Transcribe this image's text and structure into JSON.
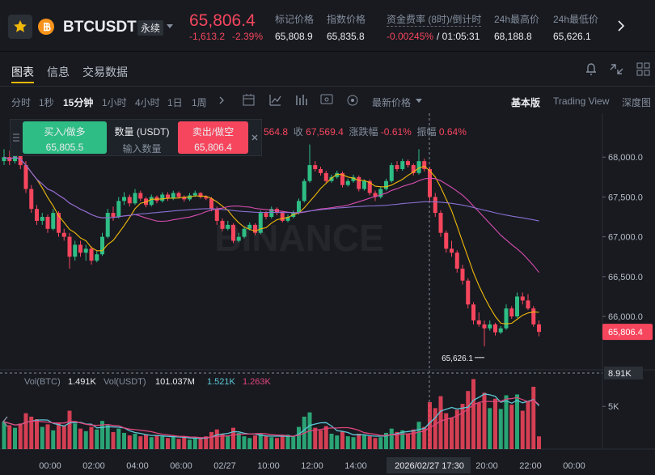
{
  "header": {
    "symbol": "BTCUSDT",
    "contract": "永续",
    "price": "65,806.4",
    "change": "-1,613.2",
    "change_pct": "-2.39%",
    "stats": [
      {
        "label": "标记价格",
        "value": "65,808.9"
      },
      {
        "label": "指数价格",
        "value": "65,835.8"
      }
    ],
    "funding": {
      "label": "资金费率 (8时)/倒计时",
      "value": "-0.00245%",
      "countdown": "/ 01:05:31"
    },
    "high": {
      "label": "24h最高价",
      "value": "68,188.8"
    },
    "low": {
      "label": "24h最低价",
      "value": "65,626.1"
    }
  },
  "tabs": [
    "图表",
    "信息",
    "交易数据"
  ],
  "intervals": [
    "分时",
    "1秒",
    "15分钟",
    "1小时",
    "4小时",
    "1日",
    "1周"
  ],
  "price_type": "最新价格",
  "views": [
    "基本版",
    "Trading View",
    "深度图"
  ],
  "order_panel": {
    "buy": "买入/做多",
    "buy_price": "65,805.5",
    "qty": "数量 (USDT)",
    "qty_hint": "输入数量",
    "sell": "卖出/做空",
    "sell_price": "65,806.4"
  },
  "ohlc_line": [
    "564.8",
    "收",
    "67,569.4",
    "涨跌幅",
    "-0.61%",
    "振幅",
    "0.64%"
  ],
  "chart": {
    "up_color": "#2ebd85",
    "down_color": "#f6465d",
    "price_ylim": [
      65350,
      68500
    ],
    "price_ticks": [
      {
        "value": 68000,
        "label": "68,000.0"
      },
      {
        "value": 67500,
        "label": "67,500.0"
      },
      {
        "value": 67000,
        "label": "67,000.0"
      },
      {
        "value": 66500,
        "label": "66,500.0"
      },
      {
        "value": 66000,
        "label": "66,000.0"
      }
    ],
    "last_price": {
      "value": 65806.4,
      "label": "65,806.4"
    },
    "low_label": "65,626.1",
    "watermark": "BINANCE",
    "ma": [
      {
        "period": 7,
        "color": "#f0b90b"
      },
      {
        "period": 25,
        "color": "#d84cb0"
      },
      {
        "period": 99,
        "color": "#8a6fd0"
      }
    ],
    "vol_ma": [
      {
        "period": 5,
        "color": "#5cc8d8"
      },
      {
        "period": 10,
        "color": "#e0457b"
      }
    ],
    "vol_ylim": [
      0,
      9000
    ],
    "vol_ticks": [
      {
        "value": 5000,
        "label": "5K"
      }
    ],
    "vol_legend": [
      "Vol(BTC)",
      "1.491K",
      "Vol(USDT)",
      "101.037M",
      "1.521K",
      "1.263K"
    ],
    "crosshair_time": "2026/02/27 17:30",
    "crosshair_vol": {
      "value": 8910,
      "label": "8.91K"
    },
    "time_labels": [
      "00:00",
      "02:00",
      "04:00",
      "06:00",
      "02/27",
      "10:00",
      "12:00",
      "14:00",
      "20:00",
      "22:00",
      "00:00"
    ],
    "candles": [
      [
        67950,
        68100,
        67900,
        68000
      ],
      [
        68000,
        68080,
        67900,
        67950
      ],
      [
        67950,
        68120,
        67920,
        68050
      ],
      [
        68050,
        68080,
        67850,
        67900
      ],
      [
        67900,
        67950,
        67550,
        67600
      ],
      [
        67600,
        67650,
        67300,
        67350
      ],
      [
        67350,
        67400,
        67150,
        67200
      ],
      [
        67200,
        67300,
        67150,
        67250
      ],
      [
        67250,
        67280,
        67050,
        67100
      ],
      [
        67100,
        67350,
        67080,
        67300
      ],
      [
        67300,
        67320,
        67000,
        67050
      ],
      [
        67050,
        67100,
        66950,
        67000
      ],
      [
        67000,
        67050,
        66600,
        66750
      ],
      [
        66750,
        66950,
        66700,
        66900
      ],
      [
        66900,
        66950,
        66750,
        66800
      ],
      [
        66800,
        66900,
        66700,
        66850
      ],
      [
        66850,
        66880,
        66650,
        66700
      ],
      [
        66700,
        66820,
        66680,
        66780
      ],
      [
        66780,
        67050,
        66760,
        67000
      ],
      [
        67000,
        67350,
        66980,
        67300
      ],
      [
        67300,
        67380,
        67200,
        67250
      ],
      [
        67250,
        67500,
        67230,
        67450
      ],
      [
        67450,
        67560,
        67400,
        67500
      ],
      [
        67500,
        67530,
        67380,
        67420
      ],
      [
        67420,
        67600,
        67400,
        67550
      ],
      [
        67550,
        67580,
        67450,
        67480
      ],
      [
        67480,
        67500,
        67370,
        67400
      ],
      [
        67400,
        67530,
        67380,
        67500
      ],
      [
        67500,
        67520,
        67420,
        67450
      ],
      [
        67450,
        67560,
        67430,
        67530
      ],
      [
        67530,
        67560,
        67450,
        67480
      ],
      [
        67480,
        67580,
        67460,
        67550
      ],
      [
        67550,
        67570,
        67480,
        67500
      ],
      [
        67500,
        67520,
        67440,
        67470
      ],
      [
        67470,
        67550,
        67450,
        67520
      ],
      [
        67520,
        67580,
        67500,
        67550
      ],
      [
        67550,
        67560,
        67480,
        67500
      ],
      [
        67500,
        67520,
        67460,
        67480
      ],
      [
        67480,
        67500,
        67320,
        67350
      ],
      [
        67350,
        67380,
        67150,
        67200
      ],
      [
        67200,
        67230,
        67070,
        67100
      ],
      [
        67100,
        67200,
        67080,
        67150
      ],
      [
        67150,
        67170,
        66920,
        66950
      ],
      [
        66950,
        67050,
        66930,
        67000
      ],
      [
        67000,
        67130,
        66980,
        67100
      ],
      [
        67100,
        67180,
        67080,
        67150
      ],
      [
        67150,
        67170,
        67020,
        67050
      ],
      [
        67050,
        67330,
        67030,
        67300
      ],
      [
        67300,
        67320,
        67220,
        67250
      ],
      [
        67250,
        67380,
        67230,
        67350
      ],
      [
        67350,
        67370,
        67270,
        67300
      ],
      [
        67300,
        67320,
        67180,
        67200
      ],
      [
        67200,
        67280,
        67180,
        67250
      ],
      [
        67250,
        67330,
        67230,
        67300
      ],
      [
        67300,
        67480,
        67280,
        67450
      ],
      [
        67450,
        67730,
        67430,
        67700
      ],
      [
        67700,
        68160,
        67680,
        67900
      ],
      [
        67900,
        67950,
        67820,
        67850
      ],
      [
        67850,
        67880,
        67770,
        67800
      ],
      [
        67800,
        67830,
        67680,
        67700
      ],
      [
        67700,
        67780,
        67680,
        67750
      ],
      [
        67750,
        67830,
        67730,
        67800
      ],
      [
        67800,
        67820,
        67620,
        67650
      ],
      [
        67650,
        67730,
        67630,
        67700
      ],
      [
        67700,
        67780,
        67680,
        67750
      ],
      [
        67750,
        67770,
        67570,
        67600
      ],
      [
        67600,
        67720,
        67580,
        67700
      ],
      [
        67700,
        67720,
        67520,
        67550
      ],
      [
        67550,
        67580,
        67450,
        67500
      ],
      [
        67500,
        67630,
        67480,
        67600
      ],
      [
        67600,
        67730,
        67580,
        67700
      ],
      [
        67700,
        67930,
        67680,
        67900
      ],
      [
        67900,
        67950,
        67820,
        67850
      ],
      [
        67850,
        67980,
        67830,
        67950
      ],
      [
        67950,
        67970,
        67870,
        67900
      ],
      [
        67900,
        67920,
        67770,
        67800
      ],
      [
        67800,
        68100,
        67780,
        67950
      ],
      [
        67950,
        67980,
        67820,
        67850
      ],
      [
        67850,
        67870,
        67450,
        67500
      ],
      [
        67500,
        67550,
        67250,
        67300
      ],
      [
        67300,
        67330,
        67000,
        67050
      ],
      [
        67050,
        67080,
        66800,
        66850
      ],
      [
        66850,
        66950,
        66750,
        66800
      ],
      [
        66800,
        66830,
        66550,
        66600
      ],
      [
        66600,
        66650,
        66400,
        66450
      ],
      [
        66450,
        66480,
        66100,
        66150
      ],
      [
        66150,
        66180,
        65900,
        65950
      ],
      [
        65950,
        66050,
        65870,
        65900
      ],
      [
        65900,
        65950,
        65626.1,
        65850
      ],
      [
        65850,
        65950,
        65820,
        65900
      ],
      [
        65900,
        65920,
        65760,
        65800
      ],
      [
        65800,
        65880,
        65780,
        65850
      ],
      [
        65850,
        66150,
        65830,
        66100
      ],
      [
        66100,
        66130,
        65970,
        66000
      ],
      [
        66000,
        66300,
        65980,
        66250
      ],
      [
        66250,
        66300,
        66150,
        66200
      ],
      [
        66200,
        66280,
        66080,
        66100
      ],
      [
        66100,
        66130,
        65870,
        65900
      ],
      [
        65900,
        65950,
        65750,
        65806.4
      ]
    ],
    "volumes": [
      3200,
      2800,
      2500,
      3000,
      4200,
      3800,
      3500,
      2600,
      2900,
      2200,
      3100,
      2700,
      4500,
      3000,
      2400,
      2100,
      2600,
      2300,
      3300,
      2800,
      2000,
      2400,
      1900,
      1600,
      1800,
      1500,
      1700,
      1400,
      1600,
      1500,
      1300,
      1500,
      1200,
      1400,
      1100,
      1300,
      1200,
      1500,
      2000,
      2300,
      1800,
      1600,
      2500,
      1900,
      1500,
      1300,
      1600,
      1800,
      1500,
      1400,
      1300,
      1600,
      1700,
      1500,
      2600,
      3800,
      4300,
      2500,
      2200,
      2700,
      1800,
      1600,
      2100,
      1500,
      1400,
      1800,
      1600,
      1500,
      1300,
      1400,
      1900,
      2400,
      2000,
      2200,
      1800,
      2300,
      3200,
      2600,
      5500,
      4800,
      6200,
      4200,
      3700,
      4600,
      5300,
      6800,
      8200,
      5400,
      6600,
      4800,
      5900,
      4700,
      6300,
      5200,
      6400,
      4500,
      5600,
      7300,
      1491
    ]
  }
}
